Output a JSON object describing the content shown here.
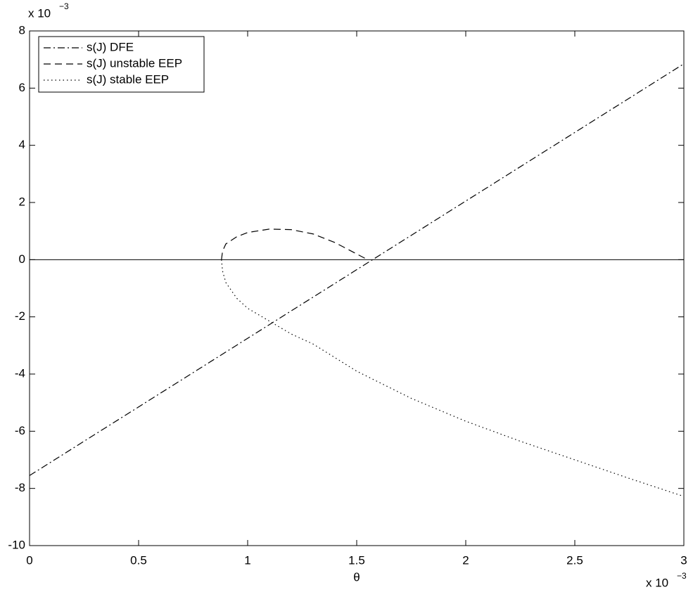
{
  "chart_data": {
    "type": "line",
    "xlabel": "θ",
    "x_multiplier": "x 10",
    "x_exponent": "−3",
    "y_multiplier": "x 10",
    "y_exponent": "−3",
    "xlim": [
      0,
      3
    ],
    "ylim": [
      -10,
      8
    ],
    "xticks": [
      0,
      0.5,
      1,
      1.5,
      2,
      2.5,
      3
    ],
    "yticks": [
      -10,
      -8,
      -6,
      -4,
      -2,
      0,
      2,
      4,
      6,
      8
    ],
    "zero_line": true,
    "legend": "upper left",
    "grid": false,
    "series": [
      {
        "name": "s(J) DFE",
        "color": "#000000",
        "dash": "dashdot",
        "x": [
          0,
          3
        ],
        "values": [
          -7.55,
          6.85
        ]
      },
      {
        "name": "s(J) unstable EEP",
        "color": "#000000",
        "dash": "dashed",
        "x": [
          0.88,
          0.885,
          0.9,
          0.95,
          1.0,
          1.1,
          1.2,
          1.3,
          1.4,
          1.5,
          1.55
        ],
        "values": [
          0,
          0.3,
          0.55,
          0.8,
          0.95,
          1.07,
          1.05,
          0.9,
          0.6,
          0.2,
          0
        ]
      },
      {
        "name": "s(J) stable EEP",
        "color": "#000000",
        "dash": "dotted",
        "x": [
          0.88,
          0.885,
          0.9,
          0.95,
          1.0,
          1.1,
          1.2,
          1.3,
          1.5,
          1.75,
          2.0,
          2.25,
          2.5,
          2.75,
          3.0
        ],
        "values": [
          0,
          -0.4,
          -0.8,
          -1.35,
          -1.7,
          -2.15,
          -2.6,
          -2.95,
          -3.9,
          -4.85,
          -5.65,
          -6.35,
          -7.0,
          -7.65,
          -8.28
        ]
      }
    ]
  }
}
